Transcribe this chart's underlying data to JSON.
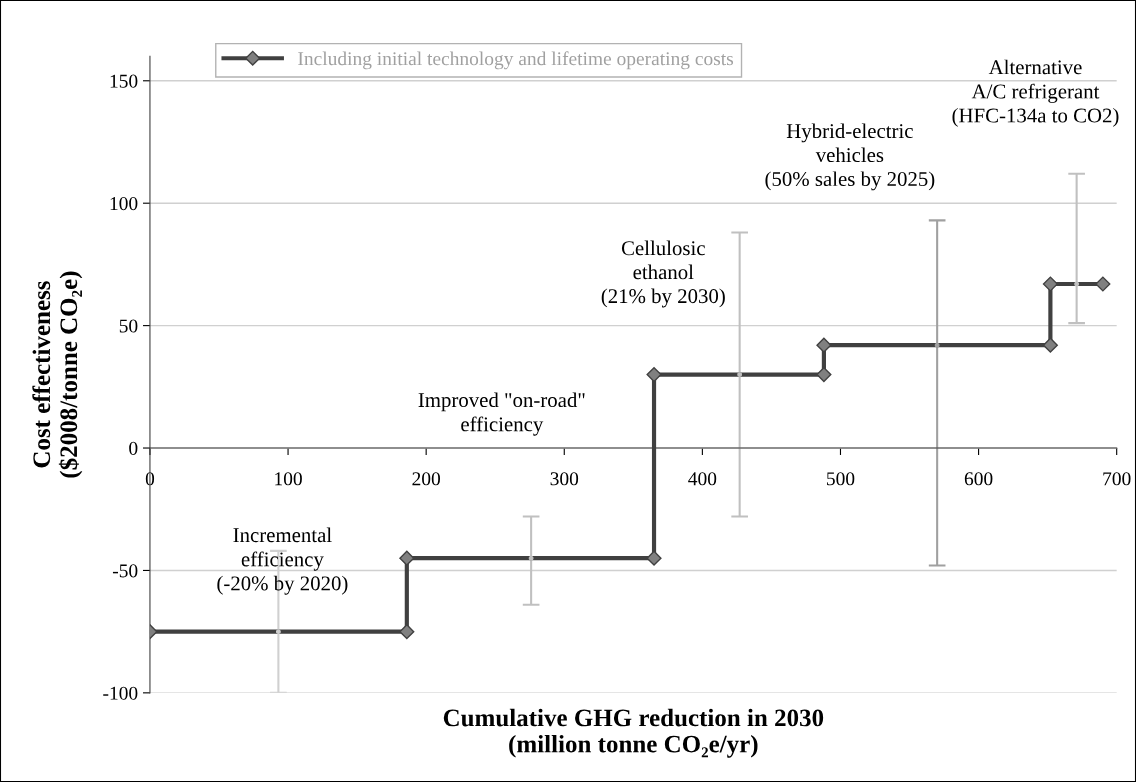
{
  "chart_data": {
    "type": "line",
    "xlabel": "Cumulative GHG reduction in 2030\n(million tonne CO₂e/yr)",
    "ylabel": "Cost effectiveness\n($2008/tonne CO₂e)",
    "xlim": [
      0,
      700
    ],
    "xticks": [
      0,
      100,
      200,
      300,
      400,
      500,
      600,
      700
    ],
    "ylim": [
      -100,
      160
    ],
    "yticks": [
      -100,
      -50,
      0,
      50,
      100,
      150
    ],
    "grid": "y",
    "legend": "top",
    "marker": "diamond",
    "line_style": "solid",
    "series": [
      {
        "name": "Including initial technology and lifetime operating costs",
        "color": "#404040",
        "x": [
          0,
          186,
          186,
          365,
          365,
          488,
          488,
          652,
          652,
          690
        ],
        "values": [
          -75,
          -75,
          -45,
          -45,
          30,
          30,
          42,
          42,
          67,
          67
        ]
      },
      {
        "type": "scatter",
        "marker": "none",
        "colors": [
          "#d0d0d0",
          "#c0c0c0",
          "#c0c0c0",
          "#a0a0a0",
          "#c0c0c0"
        ],
        "x": [
          93,
          276,
          427,
          570,
          671
        ],
        "values": [
          -75,
          -45,
          30,
          42,
          67
        ],
        "errors": [
          [
            -100,
            -42
          ],
          [
            -64,
            -28
          ],
          [
            -28,
            88
          ],
          [
            -48,
            93
          ],
          [
            51,
            112
          ]
        ]
      }
    ],
    "annotations": [
      "Incremental\nefficiency\n(-20% by 2020)",
      "Improved \"on-road\"\nefficiency",
      "Cellulosic\nethanol\n(21% by 2030)",
      "Hybrid-electric\nvehicles\n(50% sales by 2025)",
      "Alternative\nA/C refrigerant\n(HFC-134a to CO2)"
    ]
  }
}
